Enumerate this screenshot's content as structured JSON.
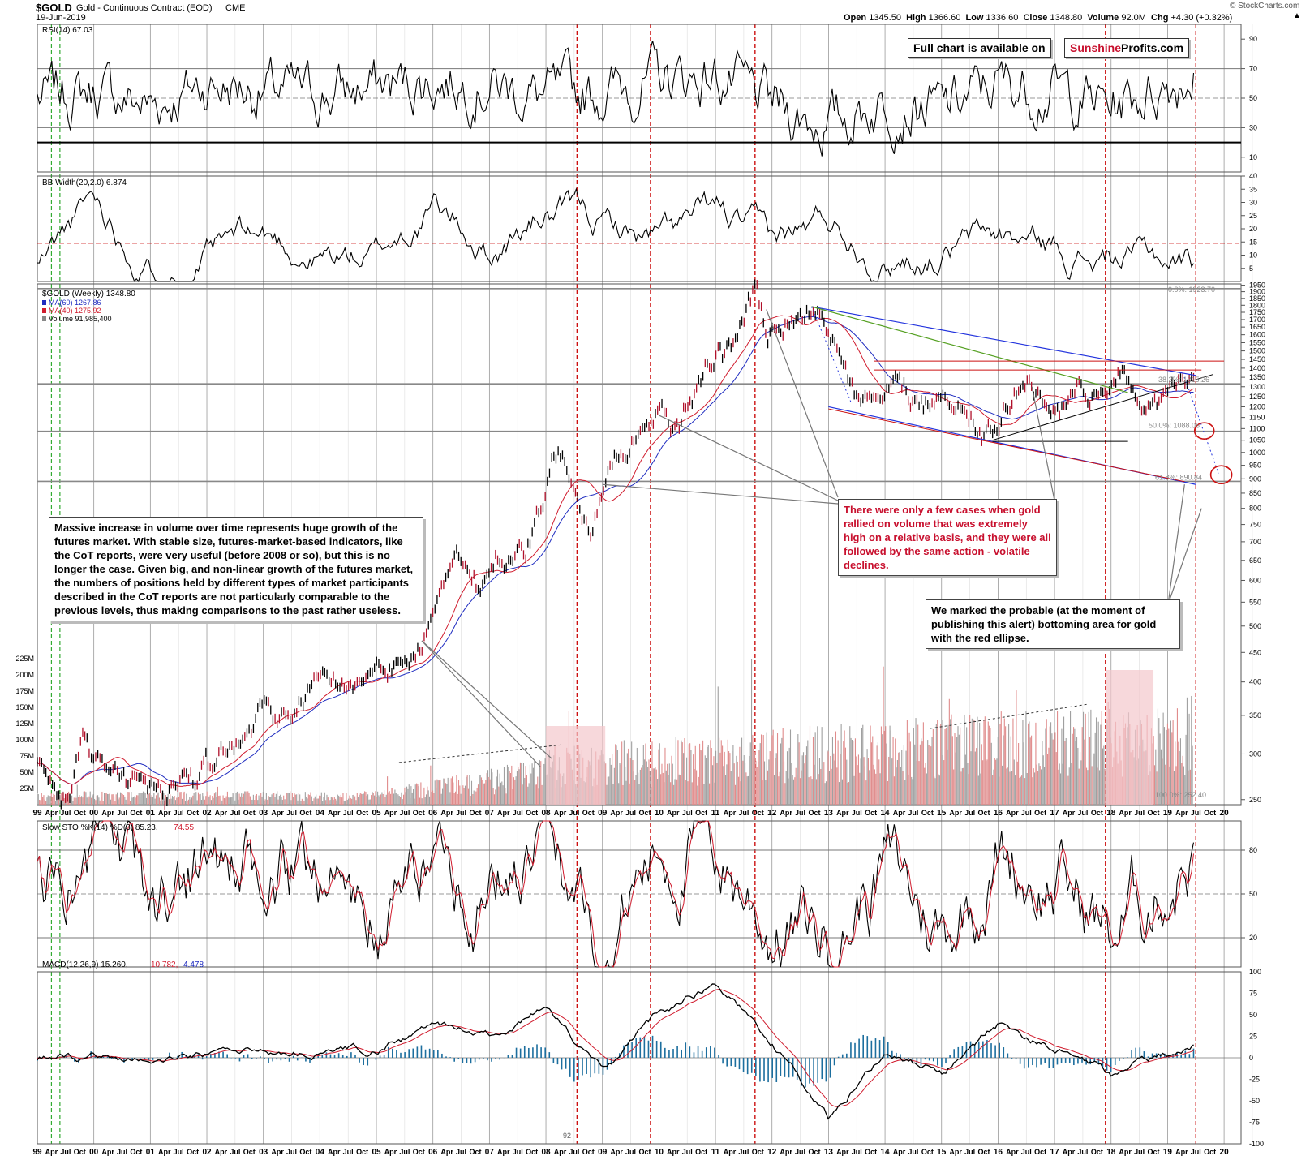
{
  "header": {
    "symbol": "$GOLD",
    "name": "Gold - Continuous Contract (EOD)",
    "exchange": "CME",
    "date": "19-Jun-2019",
    "source": "© StockCharts.com",
    "open_label": "Open",
    "open": "1345.50",
    "high_label": "High",
    "high": "1366.60",
    "low_label": "Low",
    "low": "1336.60",
    "close_label": "Close",
    "close": "1348.80",
    "volume_label": "Volume",
    "volume": "92.0M",
    "chg_label": "Chg",
    "chg": "+4.30 (+0.32%)"
  },
  "promo": {
    "prefix": "Full chart is available on",
    "brand_red": "Sunshine",
    "brand_black": "Profits.com"
  },
  "annotations": {
    "volume_note": "Massive increase in volume over time represents huge growth of the futures market. With stable size, futures-market-based indicators, like the CoT reports, were very useful (before 2008 or so), but this is no longer the case. Given big, and non-linear growth of the futures market, the numbers of positions held by different types of market participants described in the CoT reports are not particularly comparable to the previous levels, thus making comparisons to the past rather useless.",
    "rally_note": "There were only a few cases when gold rallied on volume that was extremely high on a relative basis, and they were all followed by the same action - volatile declines.",
    "ellipse_note": "We marked the probable (at the moment of publishing this alert) bottoming area for gold with the red ellipse."
  },
  "colors": {
    "price": "#000000",
    "ma40": "#d01c2e",
    "ma60": "#1f2cc0",
    "volume_up": "#e08c8c",
    "volume_down": "#a0a0a0",
    "macd_hist": "#1c6e9e",
    "signal": "#d01c2e",
    "trend_blue": "#2233dd",
    "trend_green": "#55a022",
    "resist_red": "#cc1111",
    "vline_red": "#cc1111",
    "vline_green": "#33aa33",
    "highlight": "#f3c8cc"
  },
  "chart_data": [
    {
      "panel": "rsi",
      "type": "line",
      "title": "RSI(14) 67.03",
      "yticks": [
        "90",
        "70",
        "50",
        "30",
        "10"
      ],
      "ylim": [
        0,
        100
      ],
      "levels": [
        70,
        50,
        30
      ],
      "x": [
        1999,
        2000,
        2001,
        2002,
        2003,
        2004,
        2005,
        2006,
        2007,
        2008,
        2009,
        2010,
        2011,
        2012,
        2013,
        2014,
        2015,
        2016,
        2017,
        2018,
        2019.46
      ],
      "values": [
        50,
        55,
        45,
        60,
        55,
        52,
        58,
        62,
        60,
        50,
        55,
        62,
        65,
        45,
        32,
        48,
        42,
        60,
        55,
        45,
        67.03
      ]
    },
    {
      "panel": "bbwidth",
      "type": "line",
      "title": "BB Width(20,2.0) 6.874",
      "yticks": [
        "40",
        "35",
        "30",
        "25",
        "20",
        "15",
        "10",
        "5"
      ],
      "ylim": [
        0,
        40
      ],
      "reference": 14.5,
      "x": [
        1999,
        2000,
        2001,
        2002,
        2003,
        2004,
        2005,
        2006,
        2007,
        2008,
        2009,
        2010,
        2011,
        2012,
        2013,
        2014,
        2015,
        2016,
        2017,
        2018,
        2019.46
      ],
      "values": [
        6,
        30,
        8,
        12,
        14,
        10,
        9,
        28,
        12,
        26,
        20,
        15,
        22,
        10,
        22,
        12,
        14,
        16,
        12,
        9,
        6.874
      ]
    },
    {
      "panel": "price",
      "type": "line",
      "title": "$GOLD (Weekly) 1348.80",
      "legend": [
        {
          "label": "MA(60) 1267.86",
          "color": "#1f2cc0"
        },
        {
          "label": "MA(40) 1275.92",
          "color": "#d01c2e"
        },
        {
          "label": "Volume 91,985,400",
          "color": "#888888"
        }
      ],
      "scale": "log",
      "yticks": [
        "1950",
        "1900",
        "1850",
        "1800",
        "1750",
        "1700",
        "1650",
        "1600",
        "1550",
        "1500",
        "1450",
        "1400",
        "1350",
        "1300",
        "1250",
        "1200",
        "1150",
        "1100",
        "1050",
        "1000",
        "950",
        "900",
        "850",
        "800",
        "750",
        "700",
        "650",
        "600",
        "550",
        "500",
        "450",
        "400",
        "350",
        "300",
        "250"
      ],
      "ylim": [
        245,
        1960
      ],
      "volume_ticks": [
        "225M",
        "200M",
        "175M",
        "150M",
        "125M",
        "100M",
        "75M",
        "50M",
        "25M"
      ],
      "xticks": [
        "99",
        "00",
        "01",
        "02",
        "03",
        "04",
        "05",
        "06",
        "07",
        "08",
        "09",
        "10",
        "11",
        "12",
        "13",
        "14",
        "15",
        "16",
        "17",
        "18",
        "19",
        "20"
      ],
      "xlim": [
        1999.0,
        2020.3
      ],
      "fib_labels": [
        "0.0%: 1923.70",
        "38.2%: 1315.26",
        "50.0%: 1088.05",
        "61.8%: 890.84",
        "100.0%: 252.40"
      ],
      "x": [
        1999.0,
        1999.6,
        1999.8,
        2000.1,
        2000.6,
        2001.3,
        2002.0,
        2002.5,
        2003.0,
        2003.5,
        2004.0,
        2004.5,
        2005.0,
        2005.5,
        2005.9,
        2006.4,
        2006.8,
        2007.2,
        2007.7,
        2008.2,
        2008.5,
        2008.8,
        2009.2,
        2009.9,
        2010.3,
        2010.9,
        2011.3,
        2011.7,
        2011.9,
        2012.2,
        2012.8,
        2013.3,
        2013.5,
        2013.9,
        2014.2,
        2014.8,
        2015.2,
        2015.9,
        2016.5,
        2016.9,
        2017.4,
        2017.9,
        2018.2,
        2018.6,
        2018.9,
        2019.2,
        2019.46
      ],
      "values": [
        290,
        255,
        320,
        285,
        270,
        260,
        280,
        320,
        360,
        350,
        410,
        395,
        425,
        430,
        500,
        690,
        580,
        660,
        710,
        980,
        870,
        720,
        940,
        1150,
        1120,
        1420,
        1480,
        1890,
        1600,
        1650,
        1780,
        1400,
        1220,
        1250,
        1380,
        1180,
        1230,
        1050,
        1360,
        1150,
        1260,
        1300,
        1350,
        1180,
        1240,
        1300,
        1348.8
      ]
    },
    {
      "panel": "stochastic",
      "type": "line",
      "title": "Slow STO %K(14) %D(3) 85.23,",
      "d_value": "74.55",
      "yticks": [
        "80",
        "50",
        "20"
      ],
      "ylim": [
        0,
        100
      ],
      "levels": [
        80,
        50,
        20
      ],
      "x": [
        1999,
        2000,
        2001,
        2002,
        2003,
        2004,
        2005,
        2006,
        2007,
        2008,
        2009,
        2010,
        2011,
        2012,
        2013,
        2014,
        2015,
        2016,
        2017,
        2018,
        2019.46
      ],
      "values": [
        60,
        80,
        30,
        85,
        40,
        75,
        25,
        85,
        55,
        80,
        20,
        85,
        80,
        30,
        20,
        70,
        25,
        80,
        60,
        20,
        85.23
      ]
    },
    {
      "panel": "macd",
      "type": "line",
      "title_prefix": "MACD(12,26,9) 15.260,",
      "signal_value": "10.782,",
      "hist_value": "4.478",
      "yticks": [
        "100",
        "75",
        "50",
        "25",
        "0",
        "-25",
        "-50",
        "-75",
        "-100"
      ],
      "ylim": [
        -100,
        100
      ],
      "x": [
        1999,
        2000,
        2001,
        2002,
        2003,
        2004,
        2005,
        2006,
        2007,
        2008,
        2009,
        2010,
        2011,
        2012,
        2013,
        2014,
        2015,
        2016,
        2017,
        2018,
        2019.46
      ],
      "values": [
        0,
        2,
        -3,
        5,
        8,
        6,
        10,
        35,
        25,
        60,
        -20,
        50,
        90,
        20,
        -70,
        10,
        -20,
        40,
        10,
        -20,
        15.26
      ]
    }
  ],
  "bottom_axis_note": "92"
}
